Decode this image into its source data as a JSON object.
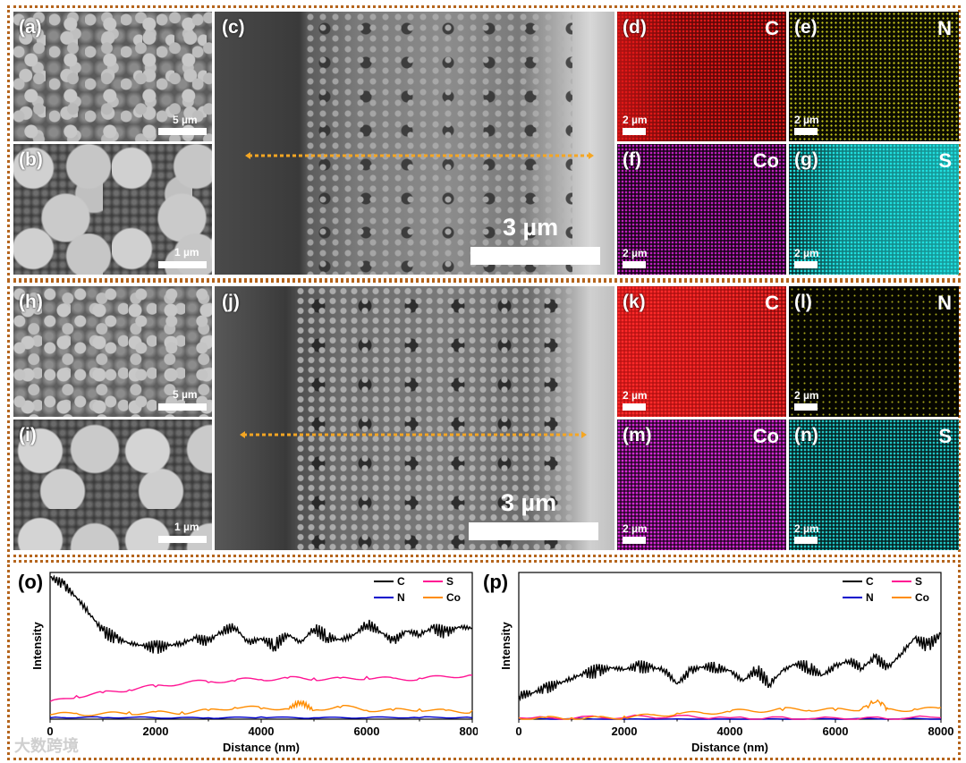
{
  "panels": {
    "a": {
      "label": "(a)",
      "scale": "5 µm"
    },
    "b": {
      "label": "(b)",
      "scale": "1 µm"
    },
    "c": {
      "label": "(c)",
      "scale": "3 µm"
    },
    "d": {
      "label": "(d)",
      "element": "C",
      "scale": "2 µm"
    },
    "e": {
      "label": "(e)",
      "element": "N",
      "scale": "2 µm"
    },
    "f": {
      "label": "(f)",
      "element": "Co",
      "scale": "2 µm"
    },
    "g": {
      "label": "(g)",
      "element": "S",
      "scale": "2 µm"
    },
    "h": {
      "label": "(h)",
      "scale": "5 µm"
    },
    "i": {
      "label": "(i)",
      "scale": "1 µm"
    },
    "j": {
      "label": "(j)",
      "scale": "3 µm"
    },
    "k": {
      "label": "(k)",
      "element": "C",
      "scale": "2 µm"
    },
    "l": {
      "label": "(l)",
      "element": "N",
      "scale": "2 µm"
    },
    "m": {
      "label": "(m)",
      "element": "Co",
      "scale": "2 µm"
    },
    "n": {
      "label": "(n)",
      "element": "S",
      "scale": "2 µm"
    }
  },
  "colors": {
    "border": "#b5651d",
    "arrow": "#f5a623",
    "C": "#d01010",
    "N": "#d6d61e",
    "Co": "#c020c0",
    "S": "#20d0d0"
  },
  "watermark": "大数跨境",
  "chart_data": [
    {
      "type": "line",
      "panel_label": "(o)",
      "xlabel": "Distance (nm)",
      "ylabel": "Intensity",
      "xlim": [
        0,
        8000
      ],
      "xticks": [
        "0",
        "2000",
        "4000",
        "6000",
        "8000"
      ],
      "legend": [
        "C",
        "N",
        "S",
        "Co"
      ],
      "series": [
        {
          "name": "C",
          "color": "#000000",
          "x": [
            0,
            250,
            500,
            750,
            1000,
            1250,
            1500,
            1750,
            2000,
            2250,
            2500,
            2750,
            3000,
            3250,
            3500,
            3750,
            4000,
            4250,
            4500,
            4750,
            5000,
            5250,
            5500,
            5750,
            6000,
            6250,
            6500,
            6750,
            7000,
            7250,
            7500,
            7750,
            8000
          ],
          "values": [
            0.97,
            0.92,
            0.83,
            0.72,
            0.6,
            0.55,
            0.52,
            0.5,
            0.49,
            0.5,
            0.52,
            0.55,
            0.53,
            0.6,
            0.63,
            0.52,
            0.55,
            0.5,
            0.58,
            0.52,
            0.62,
            0.56,
            0.54,
            0.57,
            0.65,
            0.6,
            0.53,
            0.6,
            0.58,
            0.62,
            0.59,
            0.63,
            0.62
          ]
        },
        {
          "name": "N",
          "color": "#0000cc",
          "x": [
            0,
            1000,
            2000,
            3000,
            4000,
            5000,
            6000,
            7000,
            8000
          ],
          "values": [
            0.01,
            0.01,
            0.01,
            0.01,
            0.015,
            0.01,
            0.01,
            0.01,
            0.01
          ]
        },
        {
          "name": "S",
          "color": "#ff1493",
          "x": [
            0,
            500,
            1000,
            1500,
            2000,
            2500,
            3000,
            3500,
            4000,
            4500,
            5000,
            5500,
            6000,
            6500,
            7000,
            7500,
            8000
          ],
          "values": [
            0.12,
            0.16,
            0.18,
            0.2,
            0.22,
            0.24,
            0.25,
            0.26,
            0.27,
            0.28,
            0.28,
            0.28,
            0.29,
            0.28,
            0.28,
            0.29,
            0.3
          ]
        },
        {
          "name": "Co",
          "color": "#ff8c00",
          "x": [
            0,
            500,
            1000,
            1500,
            2000,
            2500,
            3000,
            3500,
            4000,
            4500,
            4750,
            5000,
            5500,
            6000,
            6500,
            7000,
            7500,
            8000
          ],
          "values": [
            0.03,
            0.04,
            0.04,
            0.05,
            0.05,
            0.05,
            0.06,
            0.08,
            0.07,
            0.07,
            0.12,
            0.06,
            0.08,
            0.06,
            0.06,
            0.07,
            0.06,
            0.06
          ]
        }
      ]
    },
    {
      "type": "line",
      "panel_label": "(p)",
      "xlabel": "Distance (nm)",
      "ylabel": "Intensity",
      "xlim": [
        0,
        8000
      ],
      "xticks": [
        "0",
        "2000",
        "4000",
        "6000",
        "8000"
      ],
      "legend": [
        "C",
        "N",
        "S",
        "Co"
      ],
      "series": [
        {
          "name": "C",
          "color": "#000000",
          "x": [
            0,
            250,
            500,
            750,
            1000,
            1250,
            1500,
            1750,
            2000,
            2250,
            2500,
            2750,
            3000,
            3250,
            3500,
            3750,
            4000,
            4250,
            4500,
            4750,
            5000,
            5250,
            5500,
            5750,
            6000,
            6250,
            6500,
            6750,
            7000,
            7250,
            7500,
            7750,
            8000
          ],
          "values": [
            0.16,
            0.18,
            0.21,
            0.24,
            0.28,
            0.31,
            0.33,
            0.35,
            0.34,
            0.36,
            0.35,
            0.34,
            0.24,
            0.33,
            0.36,
            0.35,
            0.33,
            0.26,
            0.34,
            0.24,
            0.33,
            0.38,
            0.35,
            0.3,
            0.36,
            0.4,
            0.35,
            0.42,
            0.35,
            0.45,
            0.55,
            0.5,
            0.58
          ]
        },
        {
          "name": "N",
          "color": "#0000cc",
          "x": [
            0,
            2000,
            4000,
            6000,
            8000
          ],
          "values": [
            0.0,
            0.0,
            0.0,
            0.0,
            0.0
          ]
        },
        {
          "name": "S",
          "color": "#ff1493",
          "x": [
            0,
            2000,
            4000,
            6000,
            8000
          ],
          "values": [
            0.01,
            0.01,
            0.01,
            0.01,
            0.01
          ]
        },
        {
          "name": "Co",
          "color": "#ff8c00",
          "x": [
            0,
            500,
            1000,
            1500,
            2000,
            2500,
            3000,
            3500,
            4000,
            4500,
            5000,
            5500,
            6000,
            6500,
            6800,
            7000,
            7500,
            8000
          ],
          "values": [
            0.01,
            0.01,
            0.01,
            0.015,
            0.02,
            0.03,
            0.04,
            0.04,
            0.05,
            0.05,
            0.06,
            0.06,
            0.06,
            0.07,
            0.13,
            0.07,
            0.07,
            0.08
          ]
        }
      ]
    }
  ]
}
